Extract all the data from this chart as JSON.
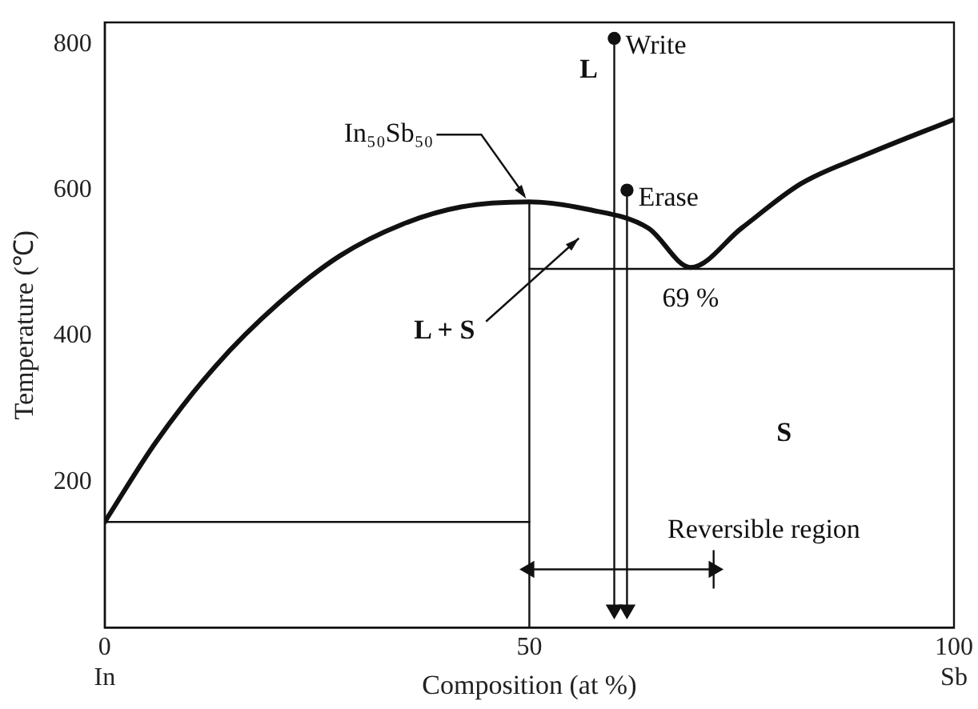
{
  "chart_data": {
    "type": "line",
    "xlabel": "Composition (at %)",
    "ylabel": "Temperature (℃)",
    "xlim": [
      0,
      100
    ],
    "xticks": [
      {
        "value": 0,
        "label": "0\nIn"
      },
      50,
      {
        "value": 100,
        "label": "100\nSb"
      }
    ],
    "ylim": [
      0,
      830
    ],
    "yticks": [
      200,
      400,
      600,
      800
    ],
    "grid": false,
    "legend": false,
    "line_style": "solid",
    "series": [
      {
        "color": "#111111",
        "x": [
          0,
          6,
          13,
          20.5,
          27.7,
          35,
          42,
          50,
          56.7,
          64,
          69,
          75,
          82,
          89.5,
          100
        ],
        "values": [
          145,
          254,
          358,
          445,
          510,
          553,
          577,
          584,
          574,
          548,
          494,
          548,
          609,
          648,
          697
        ]
      },
      {
        "color": "#111111",
        "x": [
          0,
          50
        ],
        "values": [
          145,
          145
        ]
      },
      {
        "color": "#111111",
        "x": [
          50,
          50
        ],
        "values": [
          0,
          584
        ]
      },
      {
        "color": "#111111",
        "x": [
          50,
          100
        ],
        "values": [
          492,
          492
        ]
      },
      {
        "name": "Write",
        "color": "#111111",
        "x": [
          60,
          60
        ],
        "values": [
          808,
          25
        ],
        "marker": "circle"
      },
      {
        "name": "Erase",
        "color": "#111111",
        "x": [
          61.5,
          61.5
        ],
        "values": [
          600,
          25
        ],
        "marker": "circle"
      },
      {
        "name": "Reversible region",
        "color": "#111111",
        "x": [
          50,
          71.7
        ],
        "values": [
          80,
          80
        ],
        "marker": "triangle"
      }
    ],
    "annotations": [
      "L",
      {
        "text": "In₅₀Sb₅₀",
        "x": 50,
        "y": 584
      },
      "L + S",
      {
        "text": "69 %",
        "x": 69,
        "y": 494
      },
      "S"
    ]
  }
}
